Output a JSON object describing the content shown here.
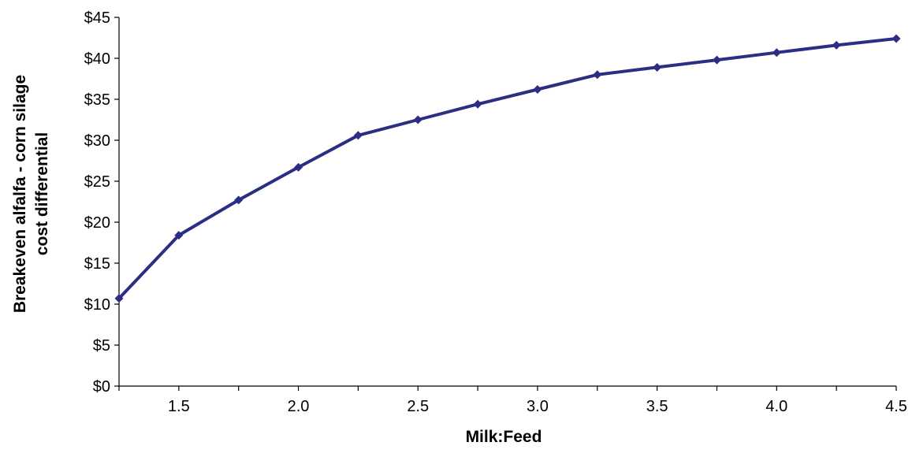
{
  "chart_data": {
    "type": "line",
    "xlabel": "Milk:Feed",
    "ylabel": [
      "Breakeven alfalfa - corn silage",
      "cost differential"
    ],
    "xlim": [
      1.25,
      4.5
    ],
    "ylim": [
      0,
      45
    ],
    "x_ticks": [
      1.25,
      1.5,
      1.75,
      2.0,
      2.25,
      2.5,
      2.75,
      3.0,
      3.25,
      3.5,
      3.75,
      4.0,
      4.25,
      4.5
    ],
    "x_tick_labels": [
      {
        "x": 1.5,
        "label": "1.5"
      },
      {
        "x": 2.0,
        "label": "2.0"
      },
      {
        "x": 2.5,
        "label": "2.5"
      },
      {
        "x": 3.0,
        "label": "3.0"
      },
      {
        "x": 3.5,
        "label": "3.5"
      },
      {
        "x": 4.0,
        "label": "4.0"
      },
      {
        "x": 4.5,
        "label": "4.5"
      }
    ],
    "y_ticks": [
      {
        "y": 0,
        "label": "$0"
      },
      {
        "y": 5,
        "label": "$5"
      },
      {
        "y": 10,
        "label": "$10"
      },
      {
        "y": 15,
        "label": "$15"
      },
      {
        "y": 20,
        "label": "$20"
      },
      {
        "y": 25,
        "label": "$25"
      },
      {
        "y": 30,
        "label": "$30"
      },
      {
        "y": 35,
        "label": "$35"
      },
      {
        "y": 40,
        "label": "$40"
      },
      {
        "y": 45,
        "label": "$45"
      }
    ],
    "grid": false,
    "legend": "none",
    "series": [
      {
        "color": "#2b2e83",
        "marker": "diamond",
        "x": [
          1.25,
          1.5,
          1.75,
          2.0,
          2.25,
          2.5,
          2.75,
          3.0,
          3.25,
          3.5,
          3.75,
          4.0,
          4.25,
          4.5
        ],
        "y": [
          10.7,
          18.4,
          22.7,
          26.7,
          30.6,
          32.5,
          34.4,
          36.2,
          38.0,
          38.9,
          39.8,
          40.7,
          41.6,
          42.4
        ]
      }
    ]
  }
}
